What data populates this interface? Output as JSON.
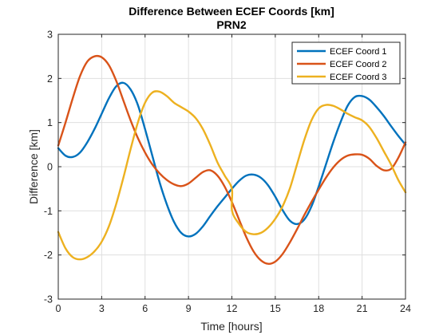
{
  "chart_data": {
    "type": "line",
    "title": "Difference Between ECEF Coords [km]",
    "subtitle": "PRN2",
    "xlabel": "Time [hours]",
    "ylabel": "Difference [km]",
    "xlim": [
      0,
      24
    ],
    "ylim": [
      -3,
      3
    ],
    "xticks": [
      0,
      3,
      6,
      9,
      12,
      15,
      18,
      21,
      24
    ],
    "yticks": [
      -3,
      -2,
      -1,
      0,
      1,
      2,
      3
    ],
    "grid": true,
    "legend_position": "top-right",
    "series": [
      {
        "name": "ECEF Coord 1",
        "color": "#0072BD",
        "x": [
          0,
          0.5,
          1,
          1.5,
          2,
          2.5,
          3,
          3.5,
          4,
          4.5,
          5,
          5.5,
          6,
          6.5,
          7,
          7.5,
          8,
          8.5,
          9,
          9.5,
          10,
          10.5,
          11,
          11.5,
          12,
          12.5,
          13,
          13.5,
          14,
          14.5,
          15,
          15.5,
          16,
          16.5,
          17,
          17.5,
          18,
          18.5,
          19,
          19.5,
          20,
          20.5,
          21,
          21.5,
          22,
          22.5,
          23,
          23.5,
          24
        ],
        "y": [
          0.42,
          0.25,
          0.22,
          0.32,
          0.55,
          0.85,
          1.2,
          1.55,
          1.82,
          1.9,
          1.75,
          1.4,
          0.85,
          0.25,
          -0.35,
          -0.85,
          -1.25,
          -1.5,
          -1.58,
          -1.52,
          -1.35,
          -1.12,
          -0.9,
          -0.7,
          -0.5,
          -0.32,
          -0.2,
          -0.18,
          -0.25,
          -0.42,
          -0.68,
          -0.98,
          -1.22,
          -1.3,
          -1.2,
          -0.9,
          -0.45,
          0.05,
          0.55,
          1.0,
          1.38,
          1.58,
          1.6,
          1.52,
          1.35,
          1.15,
          0.92,
          0.7,
          0.5
        ]
      },
      {
        "name": "ECEF Coord 2",
        "color": "#D95319",
        "x": [
          0,
          0.5,
          1,
          1.5,
          2,
          2.5,
          3,
          3.5,
          4,
          4.5,
          5,
          5.5,
          6,
          6.5,
          7,
          7.5,
          8,
          8.5,
          9,
          9.5,
          10,
          10.5,
          11,
          11.5,
          12,
          12.5,
          13,
          13.5,
          14,
          14.5,
          15,
          15.5,
          16,
          16.5,
          17,
          17.5,
          18,
          18.5,
          19,
          19.5,
          20,
          20.5,
          21,
          21.5,
          22,
          22.5,
          23,
          23.5,
          24
        ],
        "y": [
          0.48,
          1.0,
          1.55,
          2.05,
          2.38,
          2.5,
          2.48,
          2.3,
          1.95,
          1.5,
          1.05,
          0.65,
          0.32,
          0.05,
          -0.15,
          -0.3,
          -0.4,
          -0.44,
          -0.38,
          -0.25,
          -0.12,
          -0.08,
          -0.2,
          -0.45,
          -0.8,
          -1.2,
          -1.6,
          -1.92,
          -2.12,
          -2.2,
          -2.15,
          -1.98,
          -1.72,
          -1.42,
          -1.1,
          -0.8,
          -0.52,
          -0.25,
          -0.02,
          0.15,
          0.25,
          0.28,
          0.27,
          0.18,
          0.02,
          -0.08,
          -0.05,
          0.2,
          0.55
        ]
      },
      {
        "name": "ECEF Coord 3",
        "color": "#EDB120",
        "x": [
          0,
          0.5,
          1,
          1.5,
          2,
          2.5,
          3,
          3.5,
          4,
          4.5,
          5,
          5.5,
          6,
          6.5,
          7,
          7.5,
          8,
          8.5,
          9,
          9.5,
          10,
          10.5,
          11,
          11.5,
          12,
          12.01,
          12.5,
          13,
          13.5,
          14,
          14.5,
          15,
          15.5,
          16,
          16.5,
          17,
          17.5,
          18,
          18.5,
          19,
          19.5,
          20,
          20.5,
          21,
          21.5,
          22,
          22.5,
          23,
          23.5,
          24
        ],
        "y": [
          -1.48,
          -1.85,
          -2.05,
          -2.1,
          -2.05,
          -1.92,
          -1.7,
          -1.35,
          -0.85,
          -0.25,
          0.4,
          1.0,
          1.45,
          1.68,
          1.7,
          1.6,
          1.45,
          1.35,
          1.25,
          1.1,
          0.85,
          0.5,
          0.1,
          -0.2,
          -0.5,
          -1.0,
          -1.3,
          -1.48,
          -1.53,
          -1.5,
          -1.38,
          -1.18,
          -0.9,
          -0.5,
          0.05,
          0.6,
          1.05,
          1.32,
          1.4,
          1.38,
          1.3,
          1.2,
          1.12,
          1.05,
          0.9,
          0.65,
          0.35,
          0.05,
          -0.3,
          -0.58
        ]
      }
    ]
  }
}
